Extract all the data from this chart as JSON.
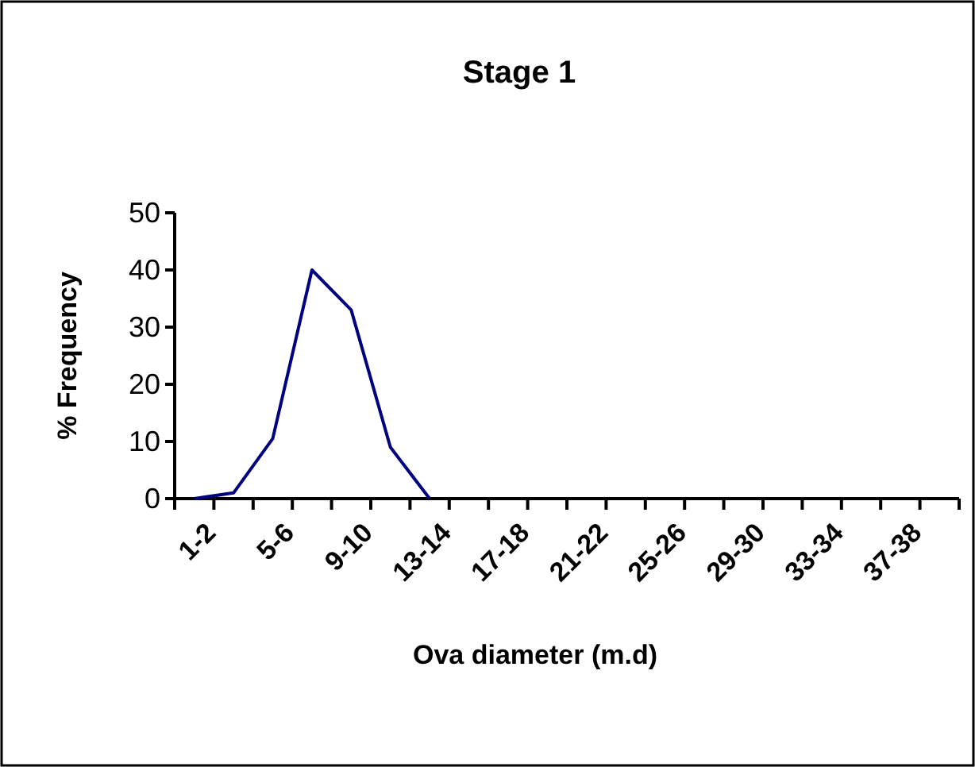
{
  "chart_data": {
    "type": "line",
    "title": "Stage 1",
    "xlabel": "Ova diameter (m.d)",
    "ylabel": "% Frequency",
    "categories": [
      "1-2",
      null,
      "5-6",
      null,
      "9-10",
      null,
      "13-14",
      null,
      "17-18",
      null,
      "21-22",
      null,
      "25-26",
      null,
      "29-30",
      null,
      "33-34",
      null,
      "37-38",
      null
    ],
    "series": [
      {
        "color": "#000080",
        "values": [
          0,
          1,
          10.5,
          40,
          33,
          9,
          0,
          null,
          null,
          null,
          null,
          null,
          null,
          null,
          null,
          null,
          null,
          null,
          null,
          null
        ]
      }
    ],
    "ylim": [
      0,
      50
    ],
    "yticks": [
      0,
      10,
      20,
      30,
      40,
      50
    ],
    "grid": false,
    "marker": "none",
    "line_style": "solid"
  }
}
